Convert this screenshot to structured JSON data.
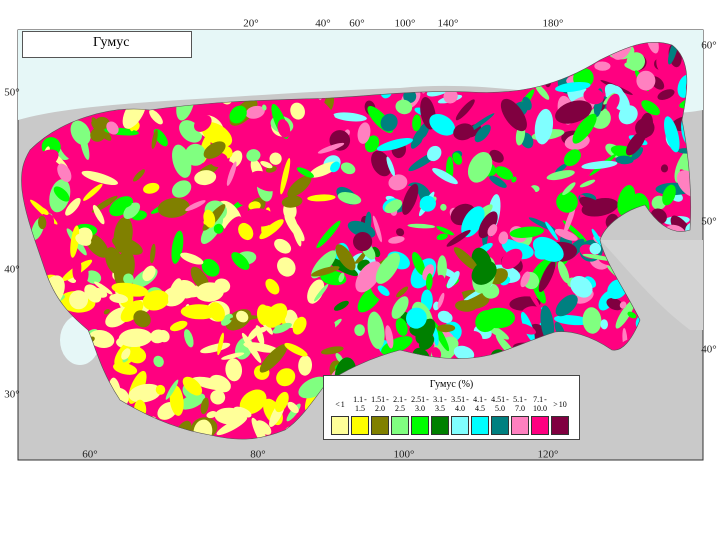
{
  "map": {
    "title": "Гумус",
    "legend": {
      "title": "Гумус (%)",
      "classes": [
        {
          "label": "< 1",
          "color": "#ffff99"
        },
        {
          "label": "1.1 - 1.5",
          "color": "#ffff00"
        },
        {
          "label": "1.51 - 2.0",
          "color": "#808000"
        },
        {
          "label": "2.1 - 2.5",
          "color": "#80ff80"
        },
        {
          "label": "2.51 - 3.0",
          "color": "#00ff00"
        },
        {
          "label": "3.1 - 3.5",
          "color": "#008000"
        },
        {
          "label": "3.51 - 4.0",
          "color": "#80ffff"
        },
        {
          "label": "4.1 - 4.5",
          "color": "#00ffff"
        },
        {
          "label": "4.51 - 5.0",
          "color": "#008080"
        },
        {
          "label": "5.1 - 7.0",
          "color": "#ff80c0"
        },
        {
          "label": "7.1 - 10.0",
          "color": "#ff0080"
        },
        {
          "label": "> 10",
          "color": "#800040"
        }
      ]
    },
    "graticule": {
      "top": [
        "20°",
        "40°",
        "60°",
        "100°",
        "140°",
        "180°"
      ],
      "bottom": [
        "60°",
        "80°",
        "100°",
        "120°"
      ],
      "left": [
        "50°",
        "40°",
        "30°"
      ],
      "right": [
        "60°",
        "50°",
        "40°"
      ]
    }
  }
}
